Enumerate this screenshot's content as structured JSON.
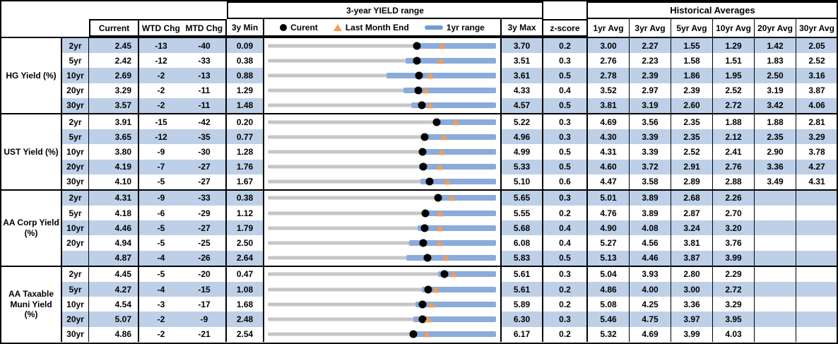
{
  "header": {
    "yield_range_title": "3-year YIELD range",
    "historical_title": "Historical Averages",
    "col_current": "Current",
    "col_wtd": "WTD Chg",
    "col_mtd": "MTD Chg",
    "col_3y_min": "3y Min",
    "col_3y_max": "3y Max",
    "col_zscore": "z-score",
    "avg_cols": [
      "1yr Avg",
      "3yr Avg",
      "5yr Avg",
      "10yr Avg",
      "20yr Avg",
      "30yr Avg"
    ],
    "legend": {
      "current": "Curent",
      "last_month": "Last Month End",
      "range": "1yr range"
    }
  },
  "colors": {
    "stripe": "#bdd0e8",
    "range_bar": "#8aabdc",
    "legend_bar": "#6f9bd2",
    "track": "#c6c6c6",
    "dot": "#000000",
    "triangle": "#f59c54"
  },
  "chart_data": {
    "type": "table",
    "description": "Yield table with bullet range charts: gray track spans 3y Min to 3y Max, blue bar is 1yr range, black dot is Current, orange triangle is Last Month End",
    "groups": [
      {
        "label_lines": [
          "HG Yield (%)"
        ],
        "rows": [
          {
            "tenor": "2yr",
            "current": "2.45",
            "wtd": "-13",
            "mtd": "-40",
            "min3y": "0.09",
            "max3y": "3.70",
            "zscore": "0.2",
            "avgs": [
              "3.00",
              "2.27",
              "1.55",
              "1.29",
              "1.42",
              "2.05"
            ],
            "last_month_end": 2.85,
            "bar_1yr_low": 2.4,
            "bar_1yr_high": 3.7
          },
          {
            "tenor": "5yr",
            "current": "2.42",
            "wtd": "-12",
            "mtd": "-33",
            "min3y": "0.38",
            "max3y": "3.51",
            "zscore": "0.3",
            "avgs": [
              "2.76",
              "2.23",
              "1.58",
              "1.51",
              "1.83",
              "2.52"
            ],
            "last_month_end": 2.75,
            "bar_1yr_low": 2.27,
            "bar_1yr_high": 3.51
          },
          {
            "tenor": "10yr",
            "current": "2.69",
            "wtd": "-2",
            "mtd": "-13",
            "min3y": "0.88",
            "max3y": "3.61",
            "zscore": "0.5",
            "avgs": [
              "2.78",
              "2.39",
              "1.86",
              "1.95",
              "2.50",
              "3.16"
            ],
            "last_month_end": 2.82,
            "bar_1yr_low": 2.3,
            "bar_1yr_high": 3.61
          },
          {
            "tenor": "20yr",
            "current": "3.29",
            "wtd": "-2",
            "mtd": "-11",
            "min3y": "1.29",
            "max3y": "4.33",
            "zscore": "0.4",
            "avgs": [
              "3.52",
              "2.97",
              "2.39",
              "2.52",
              "3.19",
              "3.87"
            ],
            "last_month_end": 3.4,
            "bar_1yr_low": 3.1,
            "bar_1yr_high": 4.33
          },
          {
            "tenor": "30yr",
            "current": "3.57",
            "wtd": "-2",
            "mtd": "-11",
            "min3y": "1.48",
            "max3y": "4.57",
            "zscore": "0.5",
            "avgs": [
              "3.81",
              "3.19",
              "2.60",
              "2.72",
              "3.42",
              "4.06"
            ],
            "last_month_end": 3.68,
            "bar_1yr_low": 3.42,
            "bar_1yr_high": 4.57
          }
        ]
      },
      {
        "label_lines": [
          "UST Yield (%)"
        ],
        "rows": [
          {
            "tenor": "2yr",
            "current": "3.91",
            "wtd": "-15",
            "mtd": "-42",
            "min3y": "0.20",
            "max3y": "5.22",
            "zscore": "0.3",
            "avgs": [
              "4.69",
              "3.56",
              "2.35",
              "1.88",
              "1.88",
              "2.81"
            ],
            "last_month_end": 4.33,
            "bar_1yr_low": 3.87,
            "bar_1yr_high": 5.22
          },
          {
            "tenor": "5yr",
            "current": "3.65",
            "wtd": "-12",
            "mtd": "-35",
            "min3y": "0.77",
            "max3y": "4.96",
            "zscore": "0.3",
            "avgs": [
              "4.30",
              "3.39",
              "2.35",
              "2.12",
              "2.35",
              "3.29"
            ],
            "last_month_end": 4.0,
            "bar_1yr_low": 3.6,
            "bar_1yr_high": 4.96
          },
          {
            "tenor": "10yr",
            "current": "3.80",
            "wtd": "-9",
            "mtd": "-30",
            "min3y": "1.28",
            "max3y": "4.99",
            "zscore": "0.5",
            "avgs": [
              "4.31",
              "3.39",
              "2.52",
              "2.41",
              "2.90",
              "3.78"
            ],
            "last_month_end": 4.1,
            "bar_1yr_low": 3.76,
            "bar_1yr_high": 4.99
          },
          {
            "tenor": "20yr",
            "current": "4.19",
            "wtd": "-7",
            "mtd": "-27",
            "min3y": "1.76",
            "max3y": "5.33",
            "zscore": "0.5",
            "avgs": [
              "4.60",
              "3.72",
              "2.91",
              "2.76",
              "3.36",
              "4.27"
            ],
            "last_month_end": 4.46,
            "bar_1yr_low": 4.12,
            "bar_1yr_high": 5.33
          },
          {
            "tenor": "30yr",
            "current": "4.10",
            "wtd": "-5",
            "mtd": "-27",
            "min3y": "1.67",
            "max3y": "5.10",
            "zscore": "0.6",
            "avgs": [
              "4.47",
              "3.58",
              "2.89",
              "2.88",
              "3.49",
              "4.31"
            ],
            "last_month_end": 4.37,
            "bar_1yr_low": 3.96,
            "bar_1yr_high": 5.1
          }
        ]
      },
      {
        "label_lines": [
          "AA Corp Yield",
          "(%)"
        ],
        "rows": [
          {
            "tenor": "2yr",
            "current": "4.31",
            "wtd": "-9",
            "mtd": "-33",
            "min3y": "0.38",
            "max3y": "5.65",
            "zscore": "0.3",
            "avgs": [
              "5.01",
              "3.89",
              "2.68",
              "2.26",
              "",
              ""
            ],
            "last_month_end": 4.64,
            "bar_1yr_low": 4.26,
            "bar_1yr_high": 5.65
          },
          {
            "tenor": "5yr",
            "current": "4.18",
            "wtd": "-6",
            "mtd": "-29",
            "min3y": "1.12",
            "max3y": "5.55",
            "zscore": "0.2",
            "avgs": [
              "4.76",
              "3.89",
              "2.87",
              "2.70",
              "",
              ""
            ],
            "last_month_end": 4.47,
            "bar_1yr_low": 4.15,
            "bar_1yr_high": 5.55
          },
          {
            "tenor": "10yr",
            "current": "4.46",
            "wtd": "-5",
            "mtd": "-27",
            "min3y": "1.79",
            "max3y": "5.68",
            "zscore": "0.4",
            "avgs": [
              "4.90",
              "4.08",
              "3.24",
              "3.20",
              "",
              ""
            ],
            "last_month_end": 4.73,
            "bar_1yr_low": 4.34,
            "bar_1yr_high": 5.68
          },
          {
            "tenor": "20yr",
            "current": "4.94",
            "wtd": "-5",
            "mtd": "-25",
            "min3y": "2.50",
            "max3y": "6.08",
            "zscore": "0.4",
            "avgs": [
              "5.27",
              "4.56",
              "3.81",
              "3.76",
              "",
              ""
            ],
            "last_month_end": 5.19,
            "bar_1yr_low": 4.72,
            "bar_1yr_high": 6.08
          },
          {
            "tenor": "",
            "current": "4.87",
            "wtd": "-4",
            "mtd": "-26",
            "min3y": "2.64",
            "max3y": "5.83",
            "zscore": "0.5",
            "avgs": [
              "5.13",
              "4.46",
              "3.87",
              "3.99",
              "",
              ""
            ],
            "last_month_end": 5.13,
            "bar_1yr_low": 4.58,
            "bar_1yr_high": 5.83
          }
        ]
      },
      {
        "label_lines": [
          "AA Taxable",
          "Muni Yield",
          "(%)"
        ],
        "rows": [
          {
            "tenor": "2yr",
            "current": "4.45",
            "wtd": "-5",
            "mtd": "-20",
            "min3y": "0.47",
            "max3y": "5.61",
            "zscore": "0.3",
            "avgs": [
              "5.04",
              "3.93",
              "2.80",
              "2.29",
              "",
              ""
            ],
            "last_month_end": 4.65,
            "bar_1yr_low": 4.31,
            "bar_1yr_high": 5.61
          },
          {
            "tenor": "5yr",
            "current": "4.27",
            "wtd": "-4",
            "mtd": "-15",
            "min3y": "1.08",
            "max3y": "5.61",
            "zscore": "0.2",
            "avgs": [
              "4.86",
              "4.00",
              "3.00",
              "2.72",
              "",
              ""
            ],
            "last_month_end": 4.42,
            "bar_1yr_low": 4.14,
            "bar_1yr_high": 5.61
          },
          {
            "tenor": "10yr",
            "current": "4.54",
            "wtd": "-3",
            "mtd": "-17",
            "min3y": "1.68",
            "max3y": "5.89",
            "zscore": "0.2",
            "avgs": [
              "5.08",
              "4.25",
              "3.36",
              "3.29",
              "",
              ""
            ],
            "last_month_end": 4.71,
            "bar_1yr_low": 4.41,
            "bar_1yr_high": 5.89
          },
          {
            "tenor": "20yr",
            "current": "5.07",
            "wtd": "-2",
            "mtd": "-9",
            "min3y": "2.48",
            "max3y": "6.30",
            "zscore": "0.3",
            "avgs": [
              "5.46",
              "4.75",
              "3.97",
              "3.95",
              "",
              ""
            ],
            "last_month_end": 5.16,
            "bar_1yr_low": 4.92,
            "bar_1yr_high": 6.3
          },
          {
            "tenor": "30yr",
            "current": "4.86",
            "wtd": "-2",
            "mtd": "-21",
            "min3y": "2.54",
            "max3y": "6.17",
            "zscore": "0.2",
            "avgs": [
              "5.32",
              "4.69",
              "3.99",
              "4.03",
              "",
              ""
            ],
            "last_month_end": 5.07,
            "bar_1yr_low": 4.8,
            "bar_1yr_high": 6.17
          }
        ]
      }
    ]
  }
}
